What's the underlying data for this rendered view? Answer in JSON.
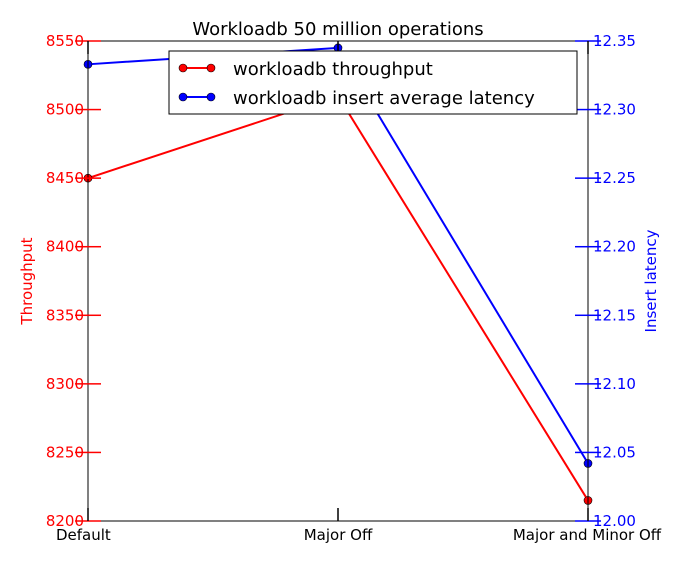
{
  "chart_data": {
    "type": "line",
    "title": "Workloadb 50 million operations",
    "categories": [
      "Default",
      "Major Off",
      "Major and Minor Off"
    ],
    "left_axis": {
      "label": "Throughput",
      "color": "#ff0000",
      "range": [
        8200,
        8550
      ],
      "ticks": [
        8200,
        8250,
        8300,
        8350,
        8400,
        8450,
        8500,
        8550
      ]
    },
    "right_axis": {
      "label": "Insert latency",
      "color": "#0000ff",
      "range": [
        12.0,
        12.35
      ],
      "ticks": [
        "12.00",
        "12.05",
        "12.10",
        "12.15",
        "12.20",
        "12.25",
        "12.30",
        "12.35"
      ]
    },
    "series": [
      {
        "name": "workloadb throughput",
        "axis": "left",
        "color": "#ff0000",
        "values": [
          8450,
          8510,
          8215
        ]
      },
      {
        "name": "workloadb insert average latency",
        "axis": "right",
        "color": "#0000ff",
        "values": [
          12.333,
          12.345,
          12.042
        ]
      }
    ],
    "legend_position": "top-center",
    "grid": false
  }
}
